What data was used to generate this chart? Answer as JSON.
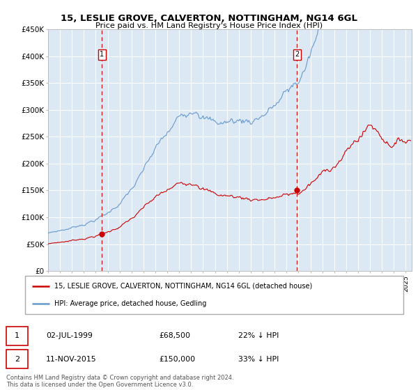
{
  "title": "15, LESLIE GROVE, CALVERTON, NOTTINGHAM, NG14 6GL",
  "subtitle": "Price paid vs. HM Land Registry's House Price Index (HPI)",
  "legend_line1": "15, LESLIE GROVE, CALVERTON, NOTTINGHAM, NG14 6GL (detached house)",
  "legend_line2": "HPI: Average price, detached house, Gedling",
  "annotation1_date": "02-JUL-1999",
  "annotation1_price": "£68,500",
  "annotation1_hpi": "22% ↓ HPI",
  "annotation2_date": "11-NOV-2015",
  "annotation2_price": "£150,000",
  "annotation2_hpi": "33% ↓ HPI",
  "sale1_date_num": 1999.5,
  "sale1_price": 68500,
  "sale2_date_num": 2015.875,
  "sale2_price": 150000,
  "background_color": "#dce9f5",
  "line_color_red": "#cc0000",
  "line_color_blue": "#6699cc",
  "dashed_color": "#cc2222",
  "footnote": "Contains HM Land Registry data © Crown copyright and database right 2024.\nThis data is licensed under the Open Government Licence v3.0.",
  "xmin": 1995,
  "xmax": 2025.5,
  "ymin": 0,
  "ymax": 450000,
  "yticks": [
    0,
    50000,
    100000,
    150000,
    200000,
    250000,
    300000,
    350000,
    400000,
    450000
  ],
  "ylabels": [
    "£0",
    "£50K",
    "£100K",
    "£150K",
    "£200K",
    "£250K",
    "£300K",
    "£350K",
    "£400K",
    "£450K"
  ]
}
